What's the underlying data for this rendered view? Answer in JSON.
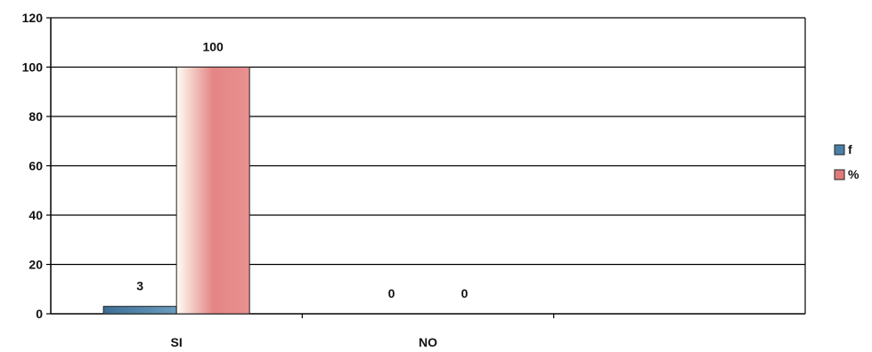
{
  "chart_data": {
    "type": "bar",
    "categories": [
      "SI",
      "NO"
    ],
    "series": [
      {
        "name": "f",
        "values": [
          3,
          0
        ],
        "color": "#4a7fa8"
      },
      {
        "name": "%",
        "values": [
          100,
          0
        ],
        "color": "#e07a7a"
      }
    ],
    "ylim": [
      0,
      120
    ],
    "yticks": [
      0,
      20,
      40,
      60,
      80,
      100,
      120
    ],
    "grid": true,
    "legend": "right",
    "data_labels": true
  }
}
